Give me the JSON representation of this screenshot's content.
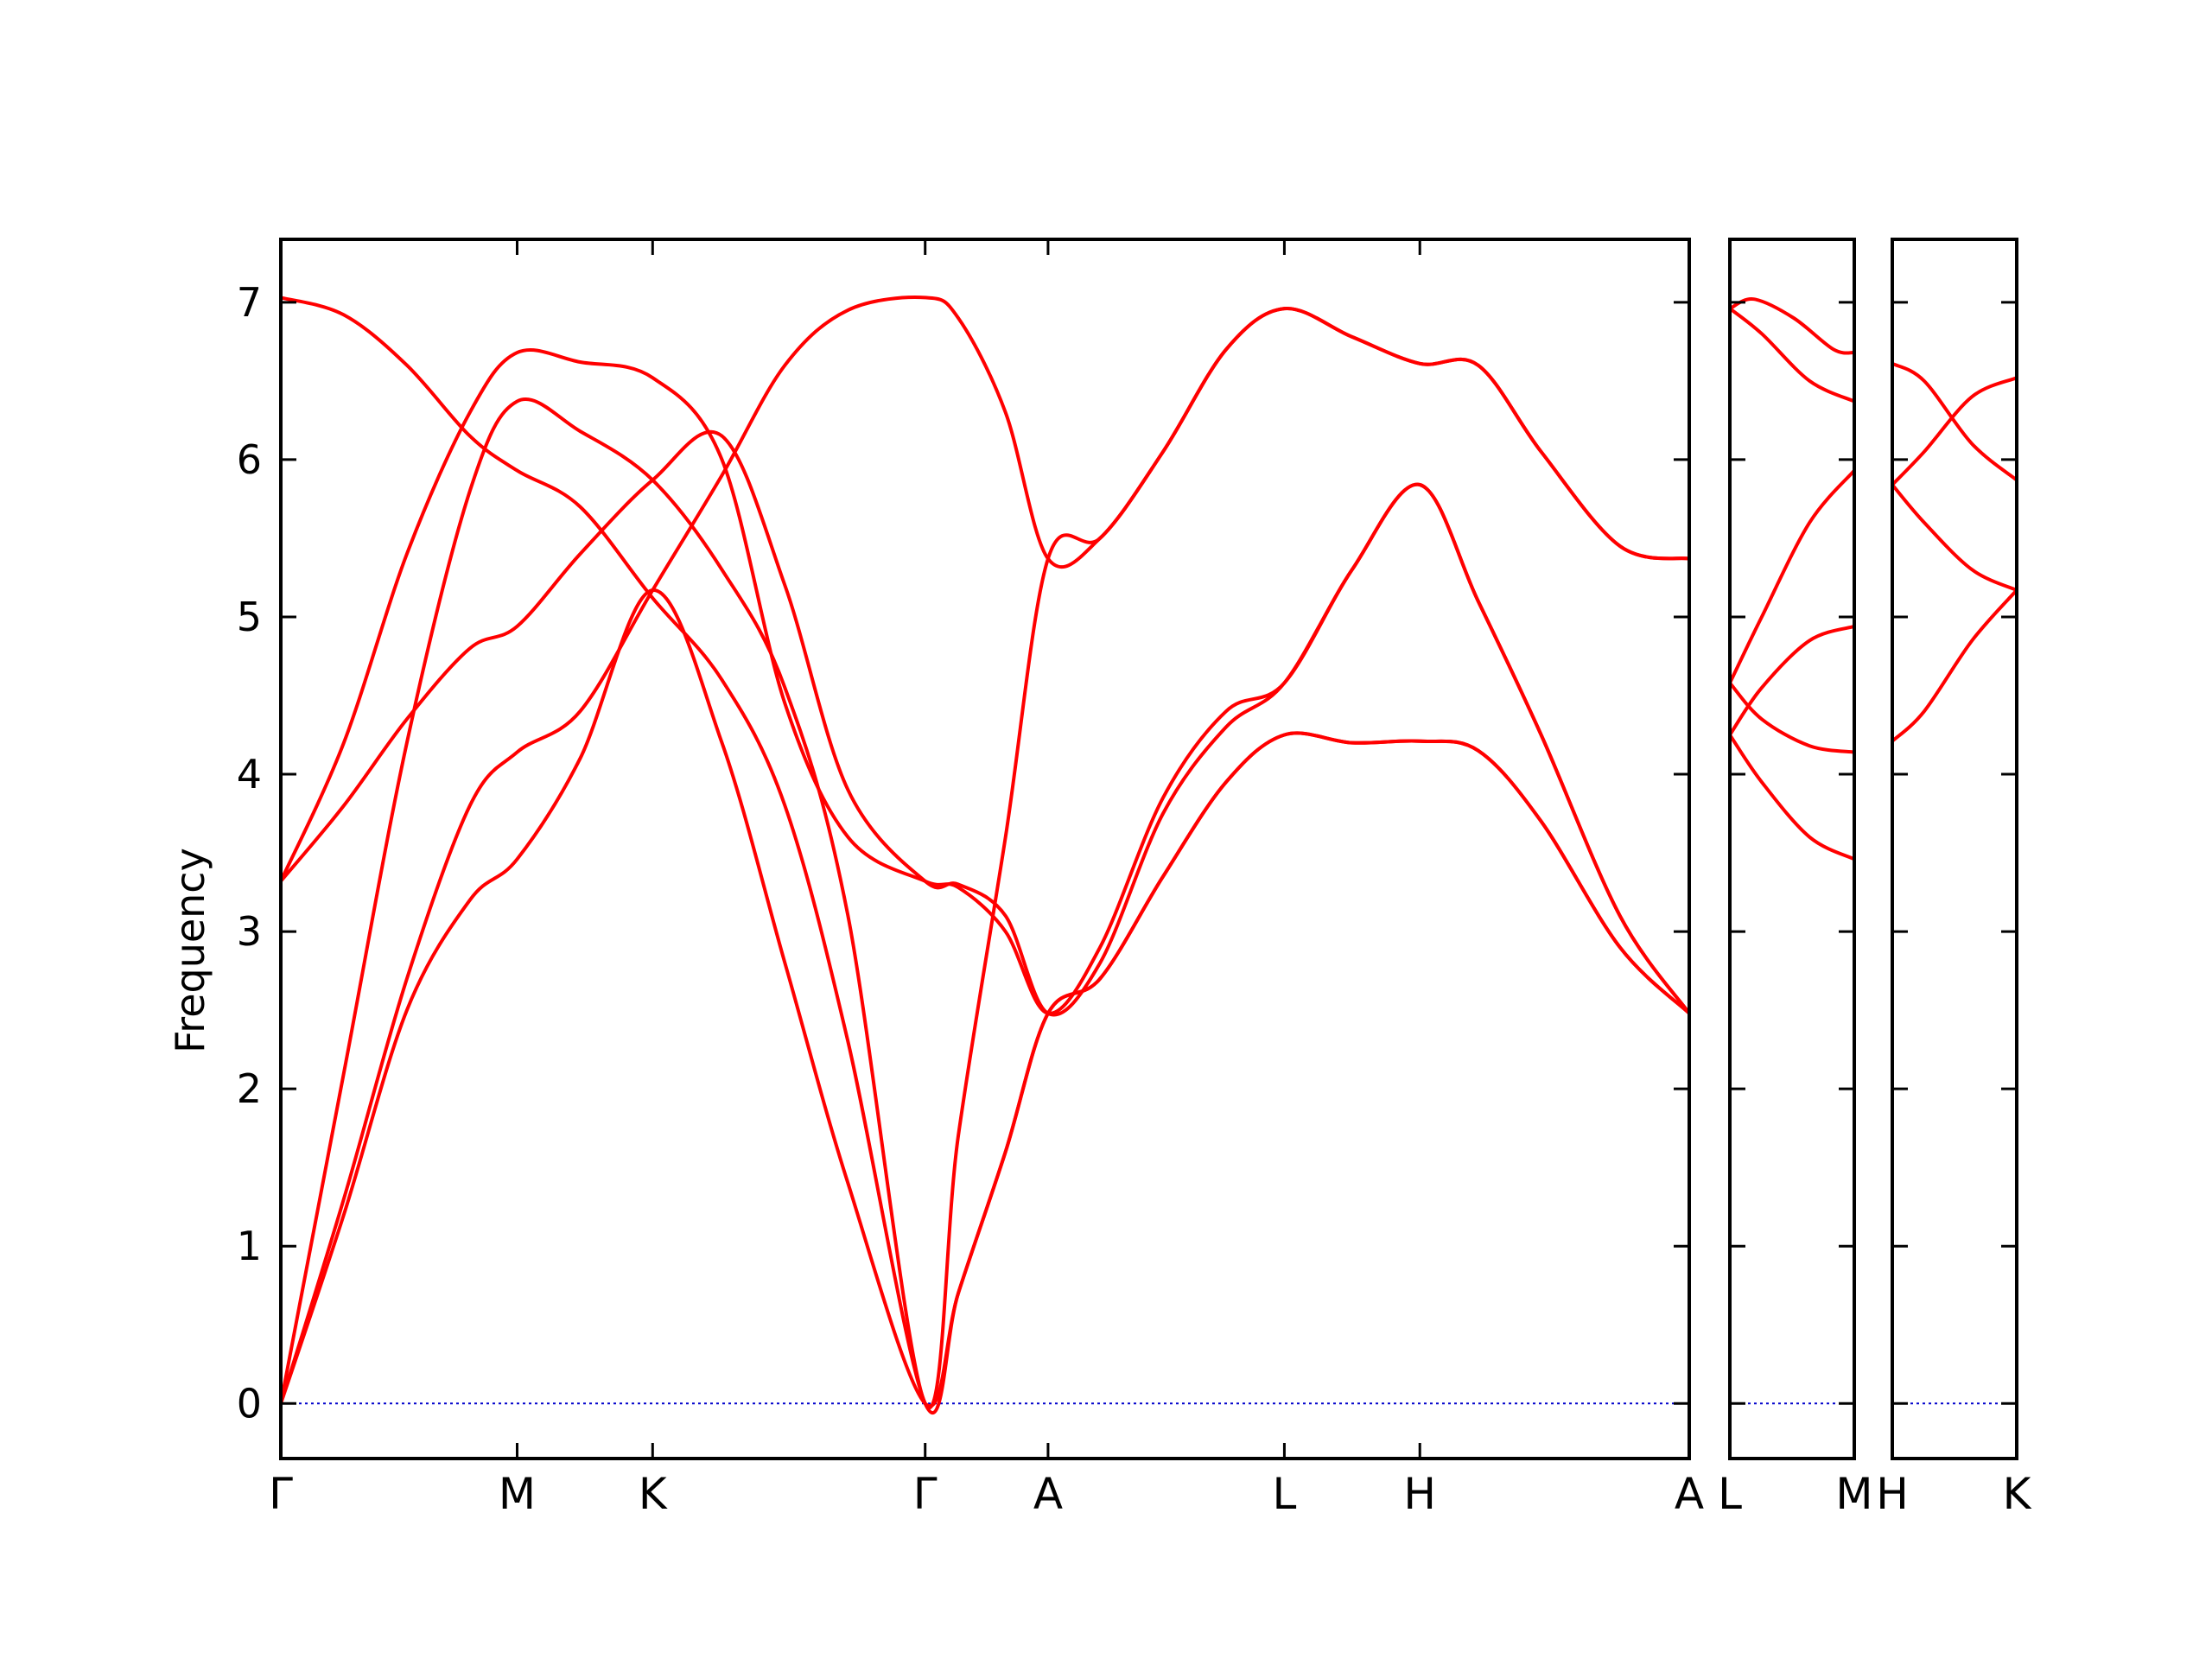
{
  "chart_data": {
    "type": "line",
    "ylabel": "Frequency",
    "ylim": [
      -0.35,
      7.4
    ],
    "yticks": [
      0,
      1,
      2,
      3,
      4,
      5,
      6,
      7
    ],
    "grid": false,
    "line_color": "#ff0000",
    "zero_line_color": "#0000cc",
    "panels": [
      {
        "xlim": [
          0,
          8.94
        ],
        "ticks": [
          {
            "x": 0,
            "label": "Γ"
          },
          {
            "x": 1.5,
            "label": "M"
          },
          {
            "x": 2.36,
            "label": "K"
          },
          {
            "x": 4.09,
            "label": "Γ"
          },
          {
            "x": 4.87,
            "label": "A"
          },
          {
            "x": 6.37,
            "label": "L"
          },
          {
            "x": 7.23,
            "label": "H"
          },
          {
            "x": 8.94,
            "label": "A"
          }
        ],
        "bands": [
          [
            [
              0,
              7.03
            ],
            [
              0.4,
              6.92
            ],
            [
              0.8,
              6.6
            ],
            [
              1.2,
              6.15
            ],
            [
              1.5,
              5.93
            ],
            [
              1.9,
              5.7
            ],
            [
              2.36,
              5.12
            ],
            [
              2.8,
              4.6
            ],
            [
              3.2,
              3.8
            ],
            [
              3.6,
              2.3
            ],
            [
              4.09,
              0
            ],
            [
              4.3,
              0.7
            ],
            [
              4.6,
              1.6
            ],
            [
              4.87,
              2.48
            ],
            [
              5.2,
              2.7
            ],
            [
              5.6,
              3.35
            ],
            [
              6.0,
              3.95
            ],
            [
              6.37,
              4.25
            ],
            [
              6.8,
              4.2
            ],
            [
              7.23,
              4.21
            ],
            [
              7.6,
              4.15
            ],
            [
              8.0,
              3.7
            ],
            [
              8.5,
              2.9
            ],
            [
              8.94,
              2.48
            ]
          ],
          [
            [
              0,
              3.32
            ],
            [
              0.4,
              4.2
            ],
            [
              0.8,
              5.4
            ],
            [
              1.2,
              6.3
            ],
            [
              1.5,
              6.68
            ],
            [
              1.9,
              6.62
            ],
            [
              2.36,
              6.52
            ],
            [
              2.8,
              6.0
            ],
            [
              3.2,
              4.45
            ],
            [
              3.6,
              3.6
            ],
            [
              4.09,
              3.32
            ],
            [
              4.3,
              3.28
            ],
            [
              4.6,
              3.0
            ],
            [
              4.87,
              2.48
            ],
            [
              5.2,
              2.9
            ],
            [
              5.6,
              3.85
            ],
            [
              6.0,
              4.4
            ],
            [
              6.37,
              4.58
            ],
            [
              6.8,
              5.3
            ],
            [
              7.23,
              5.84
            ],
            [
              7.6,
              5.1
            ],
            [
              8.0,
              4.25
            ],
            [
              8.5,
              3.1
            ],
            [
              8.94,
              2.48
            ]
          ],
          [
            [
              0,
              3.32
            ],
            [
              0.4,
              3.8
            ],
            [
              0.8,
              4.35
            ],
            [
              1.2,
              4.8
            ],
            [
              1.5,
              4.94
            ],
            [
              1.9,
              5.4
            ],
            [
              2.36,
              5.87
            ],
            [
              2.8,
              6.15
            ],
            [
              3.2,
              5.2
            ],
            [
              3.6,
              3.9
            ],
            [
              4.09,
              3.32
            ],
            [
              4.3,
              3.3
            ],
            [
              4.6,
              3.1
            ],
            [
              4.87,
              2.48
            ],
            [
              5.2,
              2.8
            ],
            [
              5.6,
              3.75
            ],
            [
              6.0,
              4.3
            ],
            [
              6.37,
              4.58
            ],
            [
              6.8,
              5.3
            ],
            [
              7.23,
              5.84
            ],
            [
              7.6,
              5.1
            ],
            [
              8.0,
              4.25
            ],
            [
              8.5,
              3.1
            ],
            [
              8.94,
              2.48
            ]
          ],
          [
            [
              0,
              0
            ],
            [
              0.4,
              2.1
            ],
            [
              0.8,
              4.2
            ],
            [
              1.2,
              5.8
            ],
            [
              1.5,
              6.37
            ],
            [
              1.9,
              6.18
            ],
            [
              2.36,
              5.87
            ],
            [
              2.8,
              5.3
            ],
            [
              3.2,
              4.55
            ],
            [
              3.6,
              3.1
            ],
            [
              4.09,
              0
            ],
            [
              4.3,
              1.7
            ],
            [
              4.6,
              3.6
            ],
            [
              4.87,
              5.37
            ],
            [
              5.2,
              5.5
            ],
            [
              5.6,
              6.05
            ],
            [
              6.0,
              6.7
            ],
            [
              6.37,
              6.96
            ],
            [
              6.8,
              6.78
            ],
            [
              7.23,
              6.61
            ],
            [
              7.6,
              6.6
            ],
            [
              8.0,
              6.05
            ],
            [
              8.5,
              5.45
            ],
            [
              8.94,
              5.37
            ]
          ],
          [
            [
              0,
              0
            ],
            [
              0.4,
              1.3
            ],
            [
              0.8,
              2.7
            ],
            [
              1.2,
              3.8
            ],
            [
              1.5,
              4.14
            ],
            [
              1.9,
              4.4
            ],
            [
              2.36,
              5.17
            ],
            [
              2.8,
              5.9
            ],
            [
              3.2,
              6.6
            ],
            [
              3.6,
              6.95
            ],
            [
              4.09,
              7.03
            ],
            [
              4.3,
              6.9
            ],
            [
              4.6,
              6.3
            ],
            [
              4.87,
              5.37
            ],
            [
              5.2,
              5.5
            ],
            [
              5.6,
              6.05
            ],
            [
              6.0,
              6.7
            ],
            [
              6.37,
              6.96
            ],
            [
              6.8,
              6.78
            ],
            [
              7.23,
              6.61
            ],
            [
              7.6,
              6.6
            ],
            [
              8.0,
              6.05
            ],
            [
              8.5,
              5.45
            ],
            [
              8.94,
              5.37
            ]
          ],
          [
            [
              0,
              0
            ],
            [
              0.4,
              1.2
            ],
            [
              0.8,
              2.5
            ],
            [
              1.2,
              3.2
            ],
            [
              1.5,
              3.46
            ],
            [
              1.9,
              4.1
            ],
            [
              2.36,
              5.17
            ],
            [
              2.8,
              4.2
            ],
            [
              3.2,
              2.8
            ],
            [
              3.6,
              1.4
            ],
            [
              4.09,
              0
            ],
            [
              4.3,
              0.7
            ],
            [
              4.6,
              1.6
            ],
            [
              4.87,
              2.48
            ],
            [
              5.2,
              2.7
            ],
            [
              5.6,
              3.35
            ],
            [
              6.0,
              3.95
            ],
            [
              6.37,
              4.25
            ],
            [
              6.8,
              4.2
            ],
            [
              7.23,
              4.21
            ],
            [
              7.6,
              4.15
            ],
            [
              8.0,
              3.7
            ],
            [
              8.5,
              2.9
            ],
            [
              8.94,
              2.48
            ]
          ]
        ]
      },
      {
        "xlim": [
          0,
          0.78
        ],
        "ticks": [
          {
            "x": 0,
            "label": "L"
          },
          {
            "x": 0.78,
            "label": "M"
          }
        ],
        "bands": [
          [
            [
              0,
              6.96
            ],
            [
              0.15,
              7.02
            ],
            [
              0.4,
              6.9
            ],
            [
              0.65,
              6.7
            ],
            [
              0.78,
              6.68
            ]
          ],
          [
            [
              0,
              6.96
            ],
            [
              0.2,
              6.8
            ],
            [
              0.5,
              6.5
            ],
            [
              0.78,
              6.37
            ]
          ],
          [
            [
              0,
              4.58
            ],
            [
              0.2,
              5.0
            ],
            [
              0.5,
              5.6
            ],
            [
              0.78,
              5.93
            ]
          ],
          [
            [
              0,
              4.58
            ],
            [
              0.2,
              4.35
            ],
            [
              0.5,
              4.18
            ],
            [
              0.78,
              4.14
            ]
          ],
          [
            [
              0,
              4.25
            ],
            [
              0.2,
              4.55
            ],
            [
              0.5,
              4.85
            ],
            [
              0.78,
              4.94
            ]
          ],
          [
            [
              0,
              4.25
            ],
            [
              0.2,
              3.95
            ],
            [
              0.5,
              3.6
            ],
            [
              0.78,
              3.46
            ]
          ]
        ]
      },
      {
        "xlim": [
          0,
          0.78
        ],
        "ticks": [
          {
            "x": 0,
            "label": "H"
          },
          {
            "x": 0.78,
            "label": "K"
          }
        ],
        "bands": [
          [
            [
              0,
              6.61
            ],
            [
              0.2,
              6.5
            ],
            [
              0.5,
              6.1
            ],
            [
              0.78,
              5.87
            ]
          ],
          [
            [
              0,
              5.84
            ],
            [
              0.2,
              6.05
            ],
            [
              0.5,
              6.4
            ],
            [
              0.78,
              6.52
            ]
          ],
          [
            [
              0,
              5.84
            ],
            [
              0.2,
              5.6
            ],
            [
              0.5,
              5.3
            ],
            [
              0.78,
              5.17
            ]
          ],
          [
            [
              0,
              4.21
            ],
            [
              0.2,
              4.4
            ],
            [
              0.5,
              4.85
            ],
            [
              0.78,
              5.17
            ]
          ]
        ]
      }
    ]
  }
}
